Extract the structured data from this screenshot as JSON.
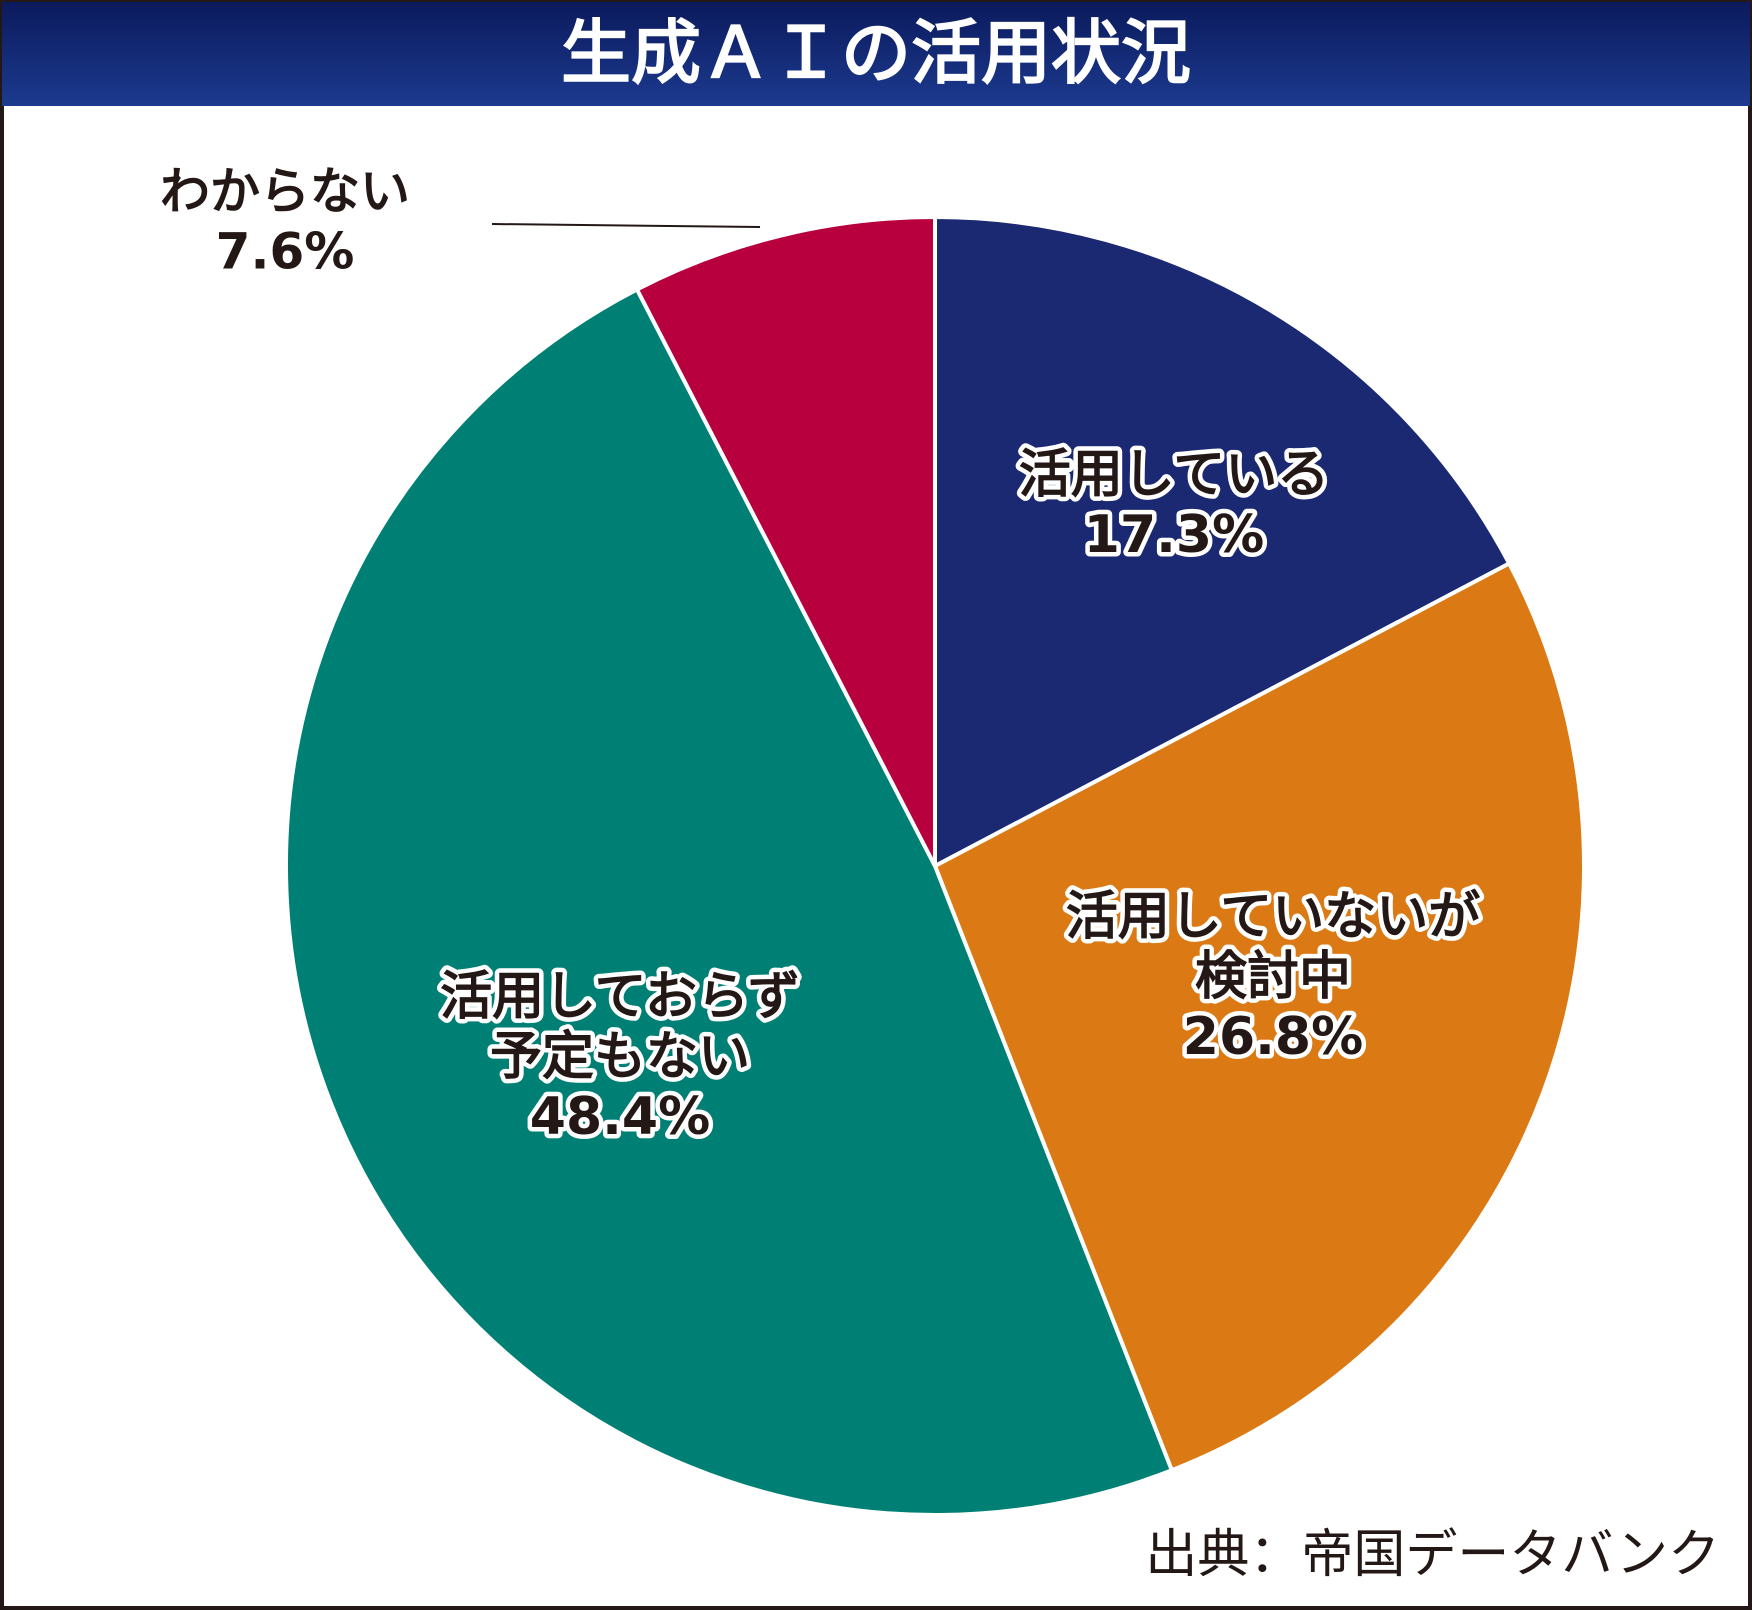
{
  "chart_data": {
    "type": "pie",
    "title": "生成ＡＩの活用状況",
    "source": "出典：帝国データバンク",
    "categories": [
      [
        "活用している"
      ],
      [
        "活用していないが",
        "検討中"
      ],
      [
        "活用しておらず",
        "予定もない"
      ],
      [
        "わからない"
      ]
    ],
    "values": [
      17.3,
      26.8,
      48.4,
      7.6
    ],
    "value_labels": [
      "17.3%",
      "26.8%",
      "48.4%",
      "7.6%"
    ],
    "colors": [
      "#1b2872",
      "#db7a14",
      "#008074",
      "#b8003f"
    ]
  }
}
